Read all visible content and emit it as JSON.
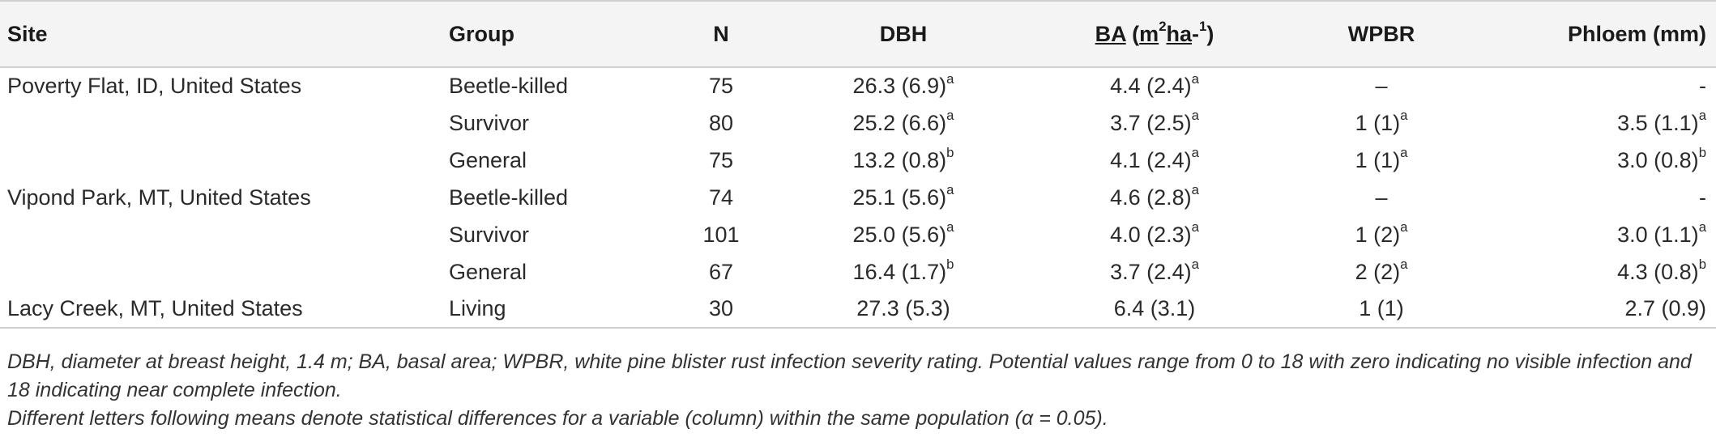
{
  "columns": {
    "site": "Site",
    "group": "Group",
    "n": "N",
    "dbh": "DBH",
    "ba": {
      "a": "BA",
      "b": " (",
      "c": "m",
      "d": "2",
      "e": "ha",
      "f": "-",
      "g": "1",
      "h": ")"
    },
    "wpbr": "WPBR",
    "phloem": "Phloem (mm)"
  },
  "rows": [
    {
      "site": "Poverty Flat, ID, United States",
      "group": "Beetle-killed",
      "n": "75",
      "dbh": "26.3 (6.9)",
      "dbh_sup": "a",
      "ba": "4.4 (2.4)",
      "ba_sup": "a",
      "wpbr": "–",
      "wpbr_sup": "",
      "phloem": "-",
      "phloem_sup": ""
    },
    {
      "site": "",
      "group": "Survivor",
      "n": "80",
      "dbh": "25.2 (6.6)",
      "dbh_sup": "a",
      "ba": "3.7 (2.5)",
      "ba_sup": "a",
      "wpbr": "1 (1)",
      "wpbr_sup": "a",
      "phloem": "3.5 (1.1)",
      "phloem_sup": "a"
    },
    {
      "site": "",
      "group": "General",
      "n": "75",
      "dbh": "13.2 (0.8)",
      "dbh_sup": "b",
      "ba": "4.1 (2.4)",
      "ba_sup": "a",
      "wpbr": "1 (1)",
      "wpbr_sup": "a",
      "phloem": "3.0 (0.8)",
      "phloem_sup": "b"
    },
    {
      "site": "Vipond Park, MT, United States",
      "group": "Beetle-killed",
      "n": "74",
      "dbh": "25.1 (5.6)",
      "dbh_sup": "a",
      "ba": "4.6 (2.8)",
      "ba_sup": "a",
      "wpbr": "–",
      "wpbr_sup": "",
      "phloem": "-",
      "phloem_sup": ""
    },
    {
      "site": "",
      "group": "Survivor",
      "n": "101",
      "dbh": "25.0 (5.6)",
      "dbh_sup": "a",
      "ba": "4.0 (2.3)",
      "ba_sup": "a",
      "wpbr": "1 (2)",
      "wpbr_sup": "a",
      "phloem": "3.0 (1.1)",
      "phloem_sup": "a"
    },
    {
      "site": "",
      "group": "General",
      "n": "67",
      "dbh": "16.4 (1.7)",
      "dbh_sup": "b",
      "ba": "3.7 (2.4)",
      "ba_sup": "a",
      "wpbr": "2 (2)",
      "wpbr_sup": "a",
      "phloem": "4.3 (0.8)",
      "phloem_sup": "b"
    },
    {
      "site": "Lacy Creek, MT, United States",
      "group": "Living",
      "n": "30",
      "dbh": "27.3 (5.3)",
      "dbh_sup": "",
      "ba": "6.4 (3.1)",
      "ba_sup": "",
      "wpbr": "1 (1)",
      "wpbr_sup": "",
      "phloem": "2.7 (0.9)",
      "phloem_sup": ""
    }
  ],
  "footnotes": [
    "DBH, diameter at breast height, 1.4 m; BA, basal area; WPBR, white pine blister rust infection severity rating. Potential values range from 0 to 18 with zero indicating no visible infection and 18 indicating near complete infection.",
    "Different letters following means denote statistical differences for a variable (column) within the same population (α = 0.05)."
  ]
}
